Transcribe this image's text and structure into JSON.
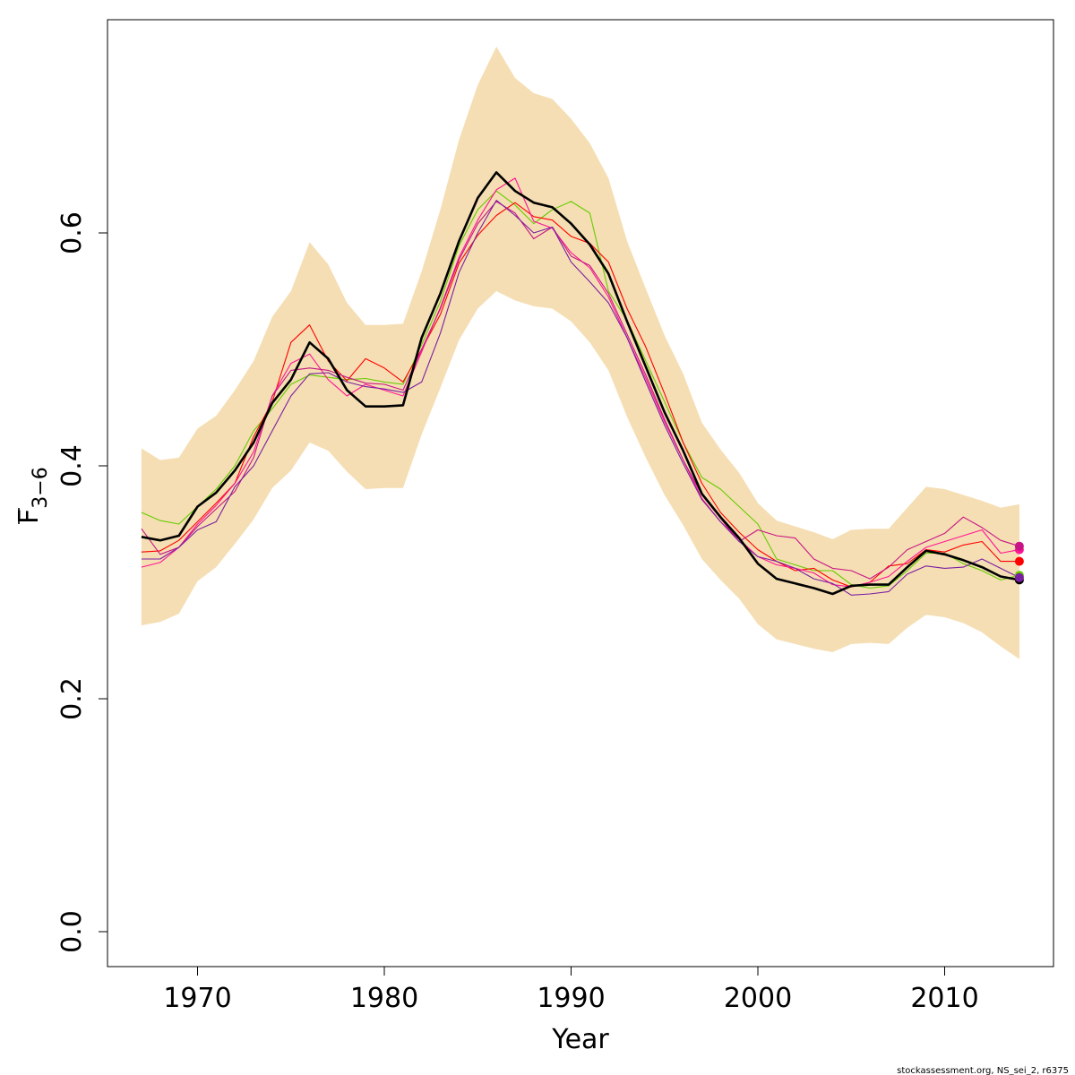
{
  "chart_data": {
    "type": "line",
    "title": "",
    "xlabel": "Year",
    "ylabel": {
      "main": "F",
      "subscript": "3−6"
    },
    "xlim": [
      1965.2,
      1915.5
    ],
    "ylim": [
      -0.03,
      0.785
    ],
    "x_ticks": [
      1970,
      1980,
      1990,
      2000,
      2010
    ],
    "y_ticks": [
      0.0,
      0.2,
      0.4,
      0.6
    ],
    "y_tick_labels": [
      "0.0",
      "0.2",
      "0.4",
      "0.6"
    ],
    "grid": false,
    "legend": "none",
    "band_color": "#f5deb3",
    "x": [
      1967,
      1968,
      1969,
      1970,
      1971,
      1972,
      1973,
      1974,
      1975,
      1976,
      1977,
      1978,
      1979,
      1980,
      1981,
      1982,
      1983,
      1984,
      1985,
      1986,
      1987,
      1988,
      1989,
      1990,
      1991,
      1992,
      1993,
      1994,
      1995,
      1996,
      1997,
      1998,
      1999,
      2000,
      2001,
      2002,
      2003,
      2004,
      2005,
      2006,
      2007,
      2008,
      2009,
      2010,
      2011,
      2012,
      2013,
      2014
    ],
    "band_upper": [
      0.415,
      0.405,
      0.407,
      0.432,
      0.443,
      0.465,
      0.49,
      0.528,
      0.55,
      0.592,
      0.573,
      0.54,
      0.521,
      0.521,
      0.522,
      0.567,
      0.62,
      0.68,
      0.727,
      0.76,
      0.733,
      0.72,
      0.715,
      0.698,
      0.677,
      0.647,
      0.593,
      0.552,
      0.512,
      0.479,
      0.437,
      0.414,
      0.394,
      0.368,
      0.353,
      0.348,
      0.343,
      0.337,
      0.345,
      0.346,
      0.346,
      0.364,
      0.382,
      0.38,
      0.375,
      0.37,
      0.364,
      0.367
    ],
    "band_lower": [
      0.263,
      0.266,
      0.273,
      0.301,
      0.313,
      0.333,
      0.354,
      0.381,
      0.396,
      0.42,
      0.413,
      0.395,
      0.38,
      0.381,
      0.381,
      0.427,
      0.467,
      0.508,
      0.535,
      0.55,
      0.542,
      0.537,
      0.535,
      0.524,
      0.506,
      0.482,
      0.442,
      0.407,
      0.375,
      0.349,
      0.32,
      0.302,
      0.286,
      0.264,
      0.251,
      0.247,
      0.243,
      0.24,
      0.247,
      0.248,
      0.247,
      0.261,
      0.272,
      0.27,
      0.265,
      0.257,
      0.245,
      0.234
    ],
    "series": [
      {
        "color": "#000000",
        "width": 2.6,
        "values": [
          0.339,
          0.336,
          0.34,
          0.365,
          0.377,
          0.396,
          0.42,
          0.454,
          0.474,
          0.506,
          0.492,
          0.465,
          0.451,
          0.451,
          0.452,
          0.51,
          0.548,
          0.593,
          0.63,
          0.652,
          0.636,
          0.626,
          0.622,
          0.608,
          0.59,
          0.565,
          0.524,
          0.485,
          0.446,
          0.413,
          0.376,
          0.356,
          0.338,
          0.316,
          0.303,
          0.299,
          0.295,
          0.29,
          0.297,
          0.298,
          0.298,
          0.313,
          0.327,
          0.324,
          0.319,
          0.313,
          0.305,
          0.302
        ],
        "end_dot": true
      },
      {
        "color": "#66cc00",
        "width": 1.1,
        "values": [
          0.36,
          0.353,
          0.35,
          0.365,
          0.38,
          0.4,
          0.43,
          0.449,
          0.47,
          0.478,
          0.476,
          0.474,
          0.475,
          0.472,
          0.47,
          0.504,
          0.541,
          0.589,
          0.62,
          0.636,
          0.624,
          0.608,
          0.62,
          0.627,
          0.617,
          0.55,
          0.525,
          0.49,
          0.455,
          0.42,
          0.39,
          0.38,
          0.365,
          0.35,
          0.32,
          0.315,
          0.31,
          0.31,
          0.298,
          0.295,
          0.297,
          0.31,
          0.325,
          0.325,
          0.316,
          0.31,
          0.302,
          0.306
        ],
        "end_dot": true
      },
      {
        "color": "#ff0000",
        "width": 1.1,
        "values": [
          0.326,
          0.327,
          0.336,
          0.352,
          0.368,
          0.385,
          0.425,
          0.455,
          0.506,
          0.521,
          0.49,
          0.473,
          0.492,
          0.484,
          0.472,
          0.5,
          0.53,
          0.574,
          0.598,
          0.615,
          0.626,
          0.614,
          0.611,
          0.597,
          0.591,
          0.575,
          0.535,
          0.502,
          0.462,
          0.42,
          0.385,
          0.36,
          0.343,
          0.328,
          0.318,
          0.31,
          0.312,
          0.302,
          0.296,
          0.3,
          0.314,
          0.316,
          0.328,
          0.326,
          0.332,
          0.335,
          0.318,
          0.318
        ],
        "end_dot": true
      },
      {
        "color": "#ff1493",
        "width": 1.1,
        "values": [
          0.313,
          0.317,
          0.33,
          0.35,
          0.366,
          0.385,
          0.412,
          0.46,
          0.488,
          0.496,
          0.474,
          0.46,
          0.47,
          0.465,
          0.46,
          0.498,
          0.536,
          0.579,
          0.611,
          0.637,
          0.647,
          0.61,
          0.604,
          0.583,
          0.57,
          0.545,
          0.51,
          0.475,
          0.438,
          0.405,
          0.372,
          0.352,
          0.337,
          0.322,
          0.315,
          0.312,
          0.308,
          0.298,
          0.296,
          0.3,
          0.305,
          0.318,
          0.33,
          0.335,
          0.34,
          0.345,
          0.325,
          0.328
        ],
        "end_dot": true
      },
      {
        "color": "#c71585",
        "width": 1.1,
        "values": [
          0.346,
          0.324,
          0.33,
          0.348,
          0.363,
          0.378,
          0.407,
          0.46,
          0.482,
          0.484,
          0.482,
          0.476,
          0.471,
          0.47,
          0.465,
          0.5,
          0.535,
          0.577,
          0.608,
          0.627,
          0.617,
          0.595,
          0.605,
          0.58,
          0.572,
          0.548,
          0.513,
          0.478,
          0.44,
          0.405,
          0.375,
          0.355,
          0.335,
          0.345,
          0.34,
          0.338,
          0.32,
          0.312,
          0.31,
          0.303,
          0.313,
          0.328,
          0.335,
          0.342,
          0.356,
          0.347,
          0.336,
          0.331
        ],
        "end_dot": true
      },
      {
        "color": "#7a1fa2",
        "width": 1.1,
        "values": [
          0.32,
          0.32,
          0.33,
          0.345,
          0.352,
          0.382,
          0.4,
          0.43,
          0.46,
          0.479,
          0.48,
          0.472,
          0.468,
          0.466,
          0.463,
          0.472,
          0.514,
          0.566,
          0.6,
          0.628,
          0.615,
          0.6,
          0.605,
          0.575,
          0.558,
          0.54,
          0.51,
          0.472,
          0.435,
          0.402,
          0.371,
          0.352,
          0.335,
          0.322,
          0.318,
          0.312,
          0.303,
          0.299,
          0.289,
          0.29,
          0.292,
          0.307,
          0.314,
          0.312,
          0.313,
          0.32,
          0.312,
          0.304
        ],
        "end_dot": true
      }
    ],
    "credit": "stockassessment.org, NS_sei_2, r6375"
  }
}
